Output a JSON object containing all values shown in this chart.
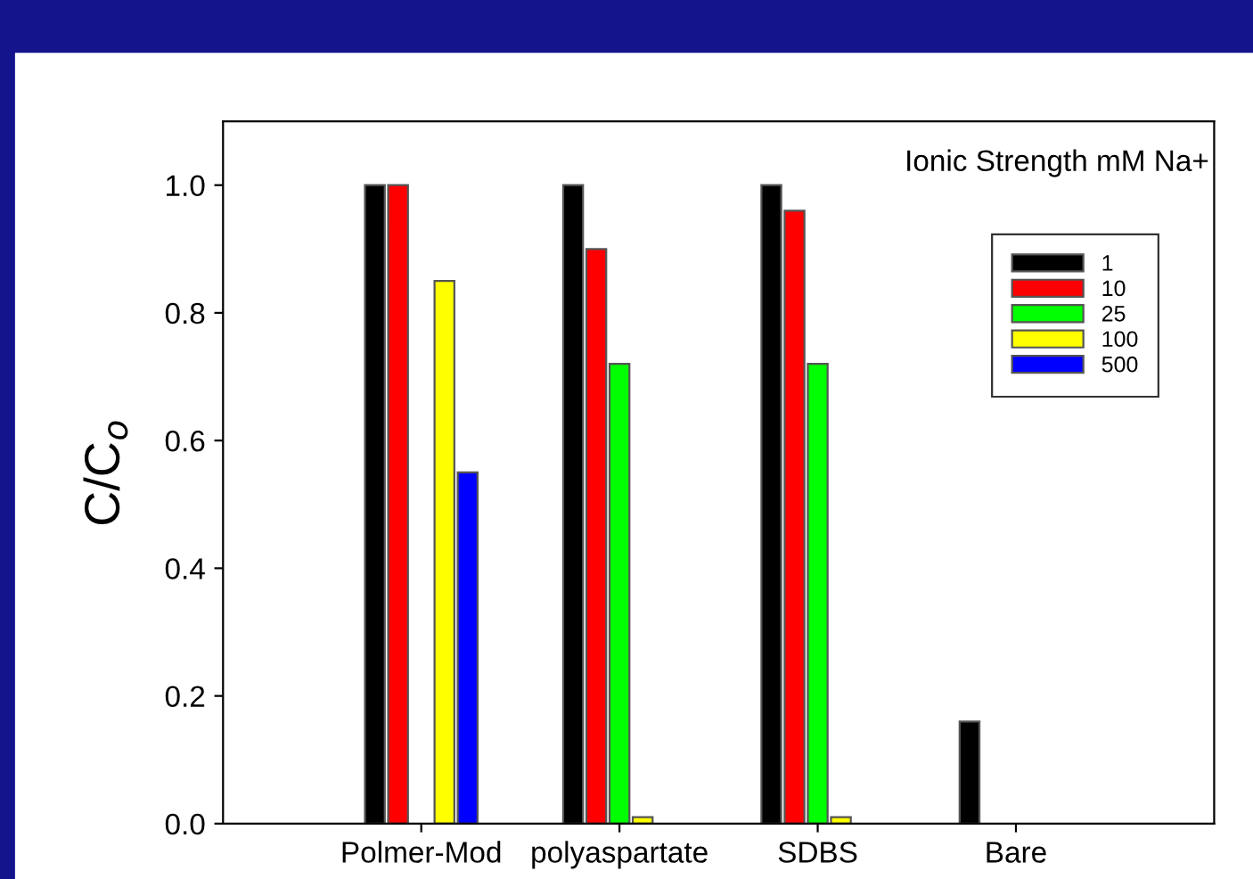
{
  "chart_data": {
    "type": "bar",
    "ylabel": "C/C$_{o}$",
    "legend_title": "Ionic Strength mM Na+",
    "categories": [
      "Polmer-Mod",
      "polyaspartate",
      "SDBS",
      "Bare"
    ],
    "series": [
      {
        "name": "1",
        "color": "#000000",
        "values": [
          1.0,
          1.0,
          1.0,
          0.16
        ]
      },
      {
        "name": "10",
        "color": "#ff0000",
        "values": [
          1.0,
          0.9,
          0.96,
          null
        ]
      },
      {
        "name": "25",
        "color": "#00ff00",
        "values": [
          null,
          0.72,
          0.72,
          null
        ]
      },
      {
        "name": "100",
        "color": "#ffff00",
        "values": [
          0.85,
          0.01,
          0.01,
          null
        ]
      },
      {
        "name": "500",
        "color": "#0000ff",
        "values": [
          0.55,
          null,
          null,
          null
        ]
      }
    ],
    "ylim": [
      0,
      1.1
    ],
    "yticks": [
      {
        "value": 0,
        "label": "0.0"
      },
      0.2,
      0.4,
      0.6,
      0.8,
      {
        "value": 1,
        "label": "1.0"
      }
    ],
    "grid": false,
    "legend": "top right"
  }
}
